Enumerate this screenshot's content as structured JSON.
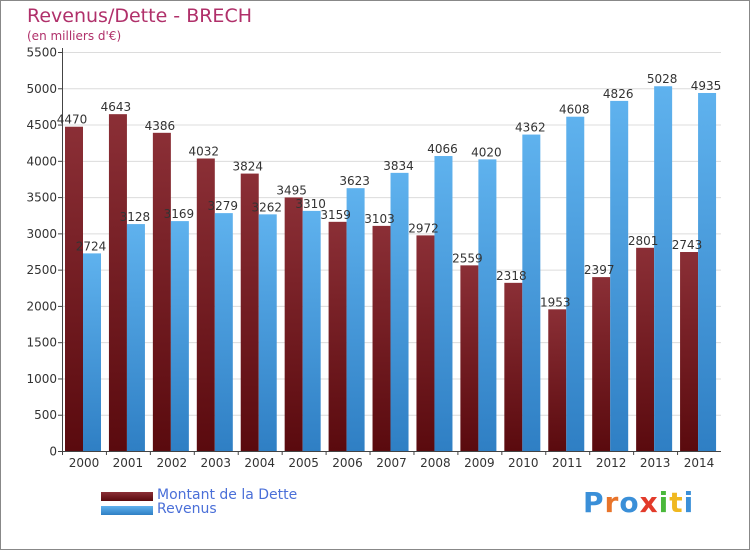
{
  "title": "Revenus/Dette - BRECH",
  "subtitle": "(en milliers d'€)",
  "logo_text": "Proxiti",
  "colors": {
    "dette_top": "#8b2f36",
    "dette_bottom": "#5a0a0e",
    "revenus_top": "#5fb2ee",
    "revenus_bottom": "#2f7fc4",
    "title": "#b0306a",
    "legend_text": "#4a6fd8"
  },
  "chart_data": {
    "type": "bar",
    "title": "Revenus/Dette - BRECH",
    "subtitle": "(en milliers d'€)",
    "categories": [
      "2000",
      "2001",
      "2002",
      "2003",
      "2004",
      "2005",
      "2006",
      "2007",
      "2008",
      "2009",
      "2010",
      "2011",
      "2012",
      "2013",
      "2014"
    ],
    "series": [
      {
        "name": "Montant de la Dette",
        "values": [
          4470,
          4643,
          4386,
          4032,
          3824,
          3495,
          3159,
          3103,
          2972,
          2559,
          2318,
          1953,
          2397,
          2801,
          2743
        ],
        "labels": [
          "4470",
          "4643",
          "4386",
          "4032",
          "3824",
          "3495",
          "3159",
          "3103",
          "2972",
          "2559",
          "2318",
          "1953",
          "2397",
          "2801",
          "2743"
        ]
      },
      {
        "name": "Revenus",
        "values": [
          2724,
          3128,
          3169,
          3279,
          3262,
          3310,
          3623,
          3834,
          4066,
          4020,
          4362,
          4608,
          4826,
          5028,
          4935
        ],
        "labels": [
          "2724",
          "3128",
          "3169",
          "3279",
          "3262",
          "3310",
          "3623",
          "3834",
          "4066",
          "4020",
          "4362",
          "4608",
          "4826",
          "5028",
          "4935"
        ]
      }
    ],
    "ylim": [
      0,
      5500
    ],
    "yticks": [
      0,
      500,
      1000,
      1500,
      2000,
      2500,
      3000,
      3500,
      4000,
      4500,
      5000,
      5500
    ],
    "grid": true,
    "legend_position": "bottom-left"
  }
}
